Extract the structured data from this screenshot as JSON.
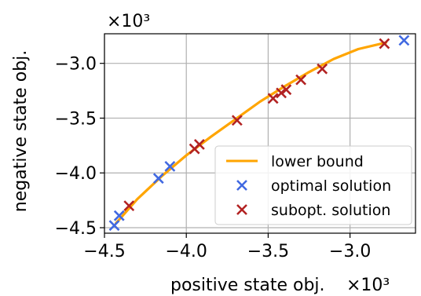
{
  "chart_data": {
    "type": "scatter",
    "xlabel": "positive state obj.",
    "ylabel": "negative state obj.",
    "x_multiplier": "×10³",
    "y_multiplier": "×10³",
    "xlim": [
      -4.5,
      -2.6
    ],
    "ylim": [
      -4.55,
      -2.73
    ],
    "x_ticks": [
      -4.5,
      -4.0,
      -3.5,
      -3.0
    ],
    "x_tick_labels": [
      "−4.5",
      "−4.0",
      "−3.5",
      "−3.0"
    ],
    "y_ticks": [
      -4.5,
      -4.0,
      -3.5,
      -3.0
    ],
    "y_tick_labels": [
      "−4.5",
      "−4.0",
      "−3.5",
      "−3.0"
    ],
    "grid": true,
    "legend_position": "lower-right",
    "series": [
      {
        "name": "lower bound",
        "kind": "line",
        "color": "#FFA500",
        "x": [
          -4.43,
          -4.3,
          -4.15,
          -4.0,
          -3.85,
          -3.7,
          -3.55,
          -3.4,
          -3.25,
          -3.1,
          -2.95,
          -2.78
        ],
        "y": [
          -4.46,
          -4.24,
          -4.03,
          -3.84,
          -3.67,
          -3.51,
          -3.35,
          -3.21,
          -3.08,
          -2.96,
          -2.87,
          -2.81
        ]
      },
      {
        "name": "optimal solution",
        "kind": "marker",
        "marker": "x",
        "color": "#4169E1",
        "x": [
          -4.44,
          -4.41,
          -4.17,
          -4.1,
          -2.67
        ],
        "y": [
          -4.48,
          -4.39,
          -4.05,
          -3.94,
          -2.79
        ]
      },
      {
        "name": "subopt. solution",
        "kind": "marker",
        "marker": "x",
        "color": "#B22222",
        "x": [
          -4.35,
          -3.95,
          -3.92,
          -3.69,
          -3.47,
          -3.42,
          -3.39,
          -3.3,
          -3.17,
          -2.79
        ],
        "y": [
          -4.3,
          -3.78,
          -3.74,
          -3.52,
          -3.32,
          -3.27,
          -3.24,
          -3.15,
          -3.05,
          -2.82
        ]
      }
    ]
  }
}
